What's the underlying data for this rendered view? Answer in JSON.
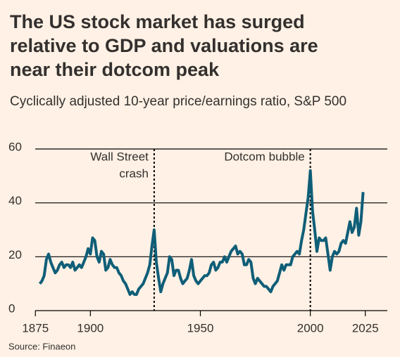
{
  "chart_data": {
    "type": "line",
    "title": "The US stock market has surged relative to GDP and valuations are near their dotcom peak",
    "subtitle": "Cyclically adjusted 10-year price/earnings ratio, S&P 500",
    "source": "Source: Finaeon",
    "color": "#0f5e78",
    "xlim": [
      1873,
      2035
    ],
    "xticks": [
      1875,
      1900,
      1950,
      2000,
      2025
    ],
    "ylim": [
      0,
      60
    ],
    "yticks": [
      0,
      20,
      40,
      60
    ],
    "grid": true,
    "annotations": [
      {
        "x": 1929,
        "lines": [
          "Wall Street",
          "crash"
        ]
      },
      {
        "x": 2000,
        "lines": [
          "Dotcom bubble"
        ]
      }
    ],
    "x": [
      1877,
      1878,
      1879,
      1880,
      1881,
      1882,
      1883,
      1884,
      1885,
      1886,
      1887,
      1888,
      1889,
      1890,
      1891,
      1892,
      1893,
      1894,
      1895,
      1896,
      1897,
      1898,
      1899,
      1900,
      1901,
      1902,
      1903,
      1904,
      1905,
      1906,
      1907,
      1908,
      1909,
      1910,
      1911,
      1912,
      1913,
      1914,
      1915,
      1916,
      1917,
      1918,
      1919,
      1920,
      1921,
      1922,
      1923,
      1924,
      1925,
      1926,
      1927,
      1928,
      1929,
      1930,
      1931,
      1932,
      1933,
      1934,
      1935,
      1936,
      1937,
      1938,
      1939,
      1940,
      1941,
      1942,
      1943,
      1944,
      1945,
      1946,
      1947,
      1948,
      1949,
      1950,
      1951,
      1952,
      1953,
      1954,
      1955,
      1956,
      1957,
      1958,
      1959,
      1960,
      1961,
      1962,
      1963,
      1964,
      1965,
      1966,
      1967,
      1968,
      1969,
      1970,
      1971,
      1972,
      1973,
      1974,
      1975,
      1976,
      1977,
      1978,
      1979,
      1980,
      1981,
      1982,
      1983,
      1984,
      1985,
      1986,
      1987,
      1988,
      1989,
      1990,
      1991,
      1992,
      1993,
      1994,
      1995,
      1996,
      1997,
      1998,
      1999,
      2000,
      2001,
      2002,
      2003,
      2004,
      2005,
      2006,
      2007,
      2008,
      2009,
      2010,
      2011,
      2012,
      2013,
      2014,
      2015,
      2016,
      2017,
      2018,
      2019,
      2020,
      2021,
      2022,
      2023,
      2024
    ],
    "values": [
      10,
      11,
      13,
      19,
      21,
      18,
      16,
      14,
      15,
      17,
      18,
      16,
      17,
      17,
      16,
      18,
      15,
      16,
      17,
      16,
      18,
      20,
      23,
      21,
      27,
      26,
      20,
      18,
      22,
      21,
      15,
      16,
      19,
      17,
      16,
      16,
      14,
      13,
      11,
      10,
      8,
      6,
      7,
      6,
      6,
      8,
      9,
      10,
      12,
      14,
      17,
      24,
      30,
      18,
      12,
      7,
      10,
      12,
      14,
      20,
      19,
      13,
      15,
      15,
      12,
      10,
      11,
      12,
      15,
      19,
      13,
      11,
      10,
      11,
      12,
      13,
      13,
      14,
      17,
      18,
      15,
      16,
      18,
      18,
      20,
      18,
      20,
      22,
      23,
      24,
      21,
      22,
      21,
      17,
      17,
      19,
      18,
      12,
      10,
      12,
      11,
      10,
      9,
      9,
      8,
      7,
      9,
      10,
      11,
      14,
      17,
      15,
      17,
      17,
      17,
      20,
      21,
      22,
      21,
      26,
      30,
      36,
      42,
      52,
      37,
      30,
      22,
      27,
      26,
      26,
      27,
      21,
      15,
      20,
      22,
      21,
      22,
      25,
      26,
      25,
      29,
      33,
      29,
      31,
      38,
      28,
      33,
      44
    ]
  }
}
